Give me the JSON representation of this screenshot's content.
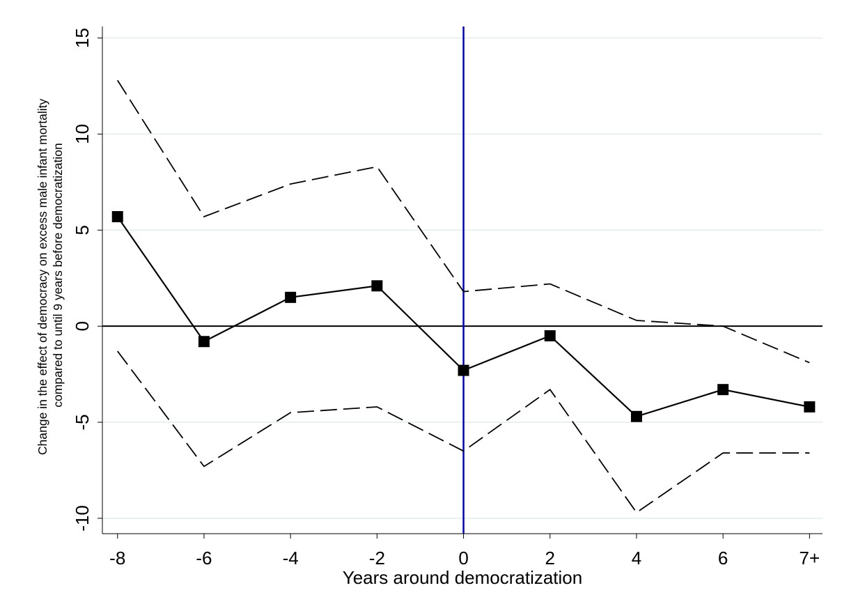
{
  "chart_data": {
    "type": "line",
    "title": "",
    "xlabel": "Years around democratization",
    "ylabel_lines": [
      "Change in the effect of democracy on excess male infant mortality",
      "compared to until 9 years before democratization"
    ],
    "x": [
      -8,
      -6,
      -4,
      -2,
      0,
      2,
      4,
      6,
      8
    ],
    "x_tick_labels": [
      "-8",
      "-6",
      "-4",
      "-2",
      "0",
      "2",
      "4",
      "6",
      "7+"
    ],
    "y_ticks": [
      -10,
      -5,
      0,
      5,
      10,
      15
    ],
    "ylim": [
      -10.8,
      15.6
    ],
    "xlim": [
      -8.35,
      8.3
    ],
    "grid": true,
    "reference_lines": {
      "horizontal_y": 0,
      "vertical_x": 0,
      "vertical_color": "#0000cc"
    },
    "series": [
      {
        "role": "estimate",
        "style": "solid-square-markers",
        "values": [
          5.7,
          -0.8,
          1.5,
          2.1,
          -2.3,
          -0.5,
          -4.7,
          -3.3,
          -4.2
        ]
      },
      {
        "role": "upper-ci",
        "style": "dashed",
        "values": [
          12.8,
          5.7,
          7.4,
          8.3,
          1.8,
          2.2,
          0.3,
          0.0,
          -1.9
        ]
      },
      {
        "role": "lower-ci",
        "style": "dashed",
        "values": [
          -1.3,
          -7.3,
          -4.5,
          -4.2,
          -6.5,
          -3.3,
          -9.7,
          -6.6,
          -6.6
        ]
      }
    ]
  }
}
